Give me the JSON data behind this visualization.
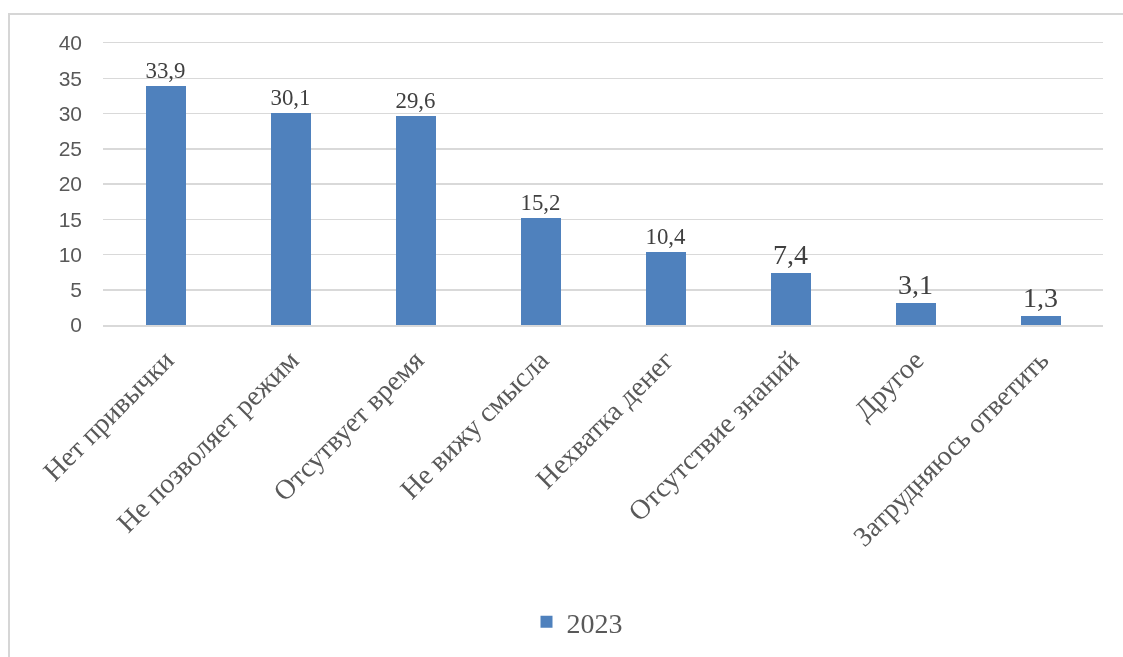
{
  "chart_data": {
    "type": "bar",
    "categories": [
      "Нет привычки",
      "Не позволяет режим",
      "Отсутвует время",
      "Не вижу смысла",
      "Нехватка денег",
      "Отсутствие знаний",
      "Другое",
      "Затрудняюсь ответить"
    ],
    "series": [
      {
        "name": "2023",
        "color": "#4f81bd",
        "values": [
          33.9,
          30.1,
          29.6,
          15.2,
          10.4,
          7.4,
          3.1,
          1.3
        ],
        "value_labels": [
          "33,9",
          "30,1",
          "29,6",
          "15,2",
          "10,4",
          "7,4",
          "3,1",
          "1,3"
        ]
      }
    ],
    "ylim": [
      0,
      40
    ],
    "yticks": [
      0,
      5,
      10,
      15,
      20,
      25,
      30,
      35,
      40
    ],
    "grid": "y",
    "legend": "bottom"
  }
}
